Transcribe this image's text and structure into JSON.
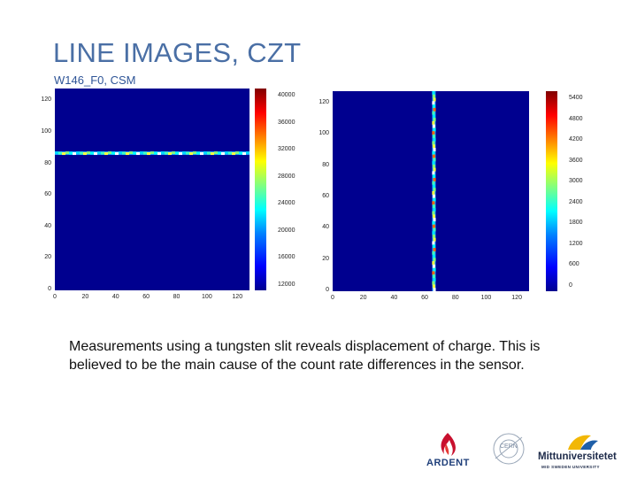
{
  "slide": {
    "title": "LINE IMAGES, CZT",
    "subtitle": "W146_F0, CSM",
    "body": "Measurements using a tungsten slit reveals displacement of charge. This is believed to be the main cause of the count rate differences in the sensor."
  },
  "chart_data": [
    {
      "type": "heatmap",
      "description_line": "horizontal",
      "x_ticks": [
        "0",
        "20",
        "40",
        "60",
        "80",
        "100",
        "120"
      ],
      "y_ticks": [
        "0",
        "20",
        "40",
        "60",
        "80",
        "100",
        "120"
      ],
      "xlim": [
        0,
        128
      ],
      "ylim": [
        0,
        128
      ],
      "line_y": 87,
      "colorbar_ticks": [
        "12000",
        "16000",
        "20000",
        "24000",
        "28000",
        "32000",
        "36000",
        "40000"
      ]
    },
    {
      "type": "heatmap",
      "description_line": "vertical",
      "x_ticks": [
        "0",
        "20",
        "40",
        "60",
        "80",
        "100",
        "120"
      ],
      "y_ticks": [
        "0",
        "20",
        "40",
        "60",
        "80",
        "100",
        "120"
      ],
      "xlim": [
        0,
        128
      ],
      "ylim": [
        0,
        128
      ],
      "line_x": 66,
      "colorbar_ticks": [
        "0",
        "600",
        "1200",
        "1800",
        "2400",
        "3000",
        "3600",
        "4200",
        "4800",
        "5400"
      ]
    }
  ],
  "logos": {
    "ardent": "ARDENT",
    "cern": "CERN",
    "mittuniversitetet": "Mittuniversitetet",
    "mittuniversitetet_sub": "MID SWEDEN UNIVERSITY"
  }
}
